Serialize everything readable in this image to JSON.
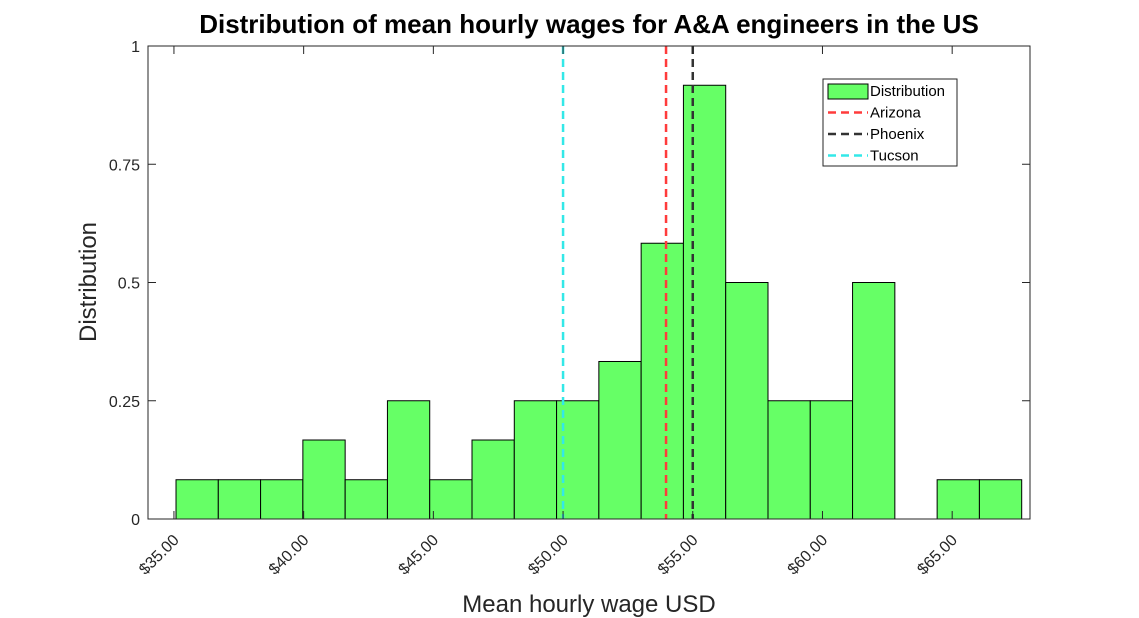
{
  "chart_data": {
    "type": "bar",
    "title": "Distribution of mean hourly wages for A&A engineers in the US",
    "xlabel": "Mean hourly wage USD",
    "ylabel": "Distribution",
    "xlim": [
      34,
      68
    ],
    "ylim": [
      0,
      1
    ],
    "x_ticks": [
      35,
      40,
      45,
      50,
      55,
      60,
      65
    ],
    "x_tick_labels": [
      "$35.00",
      "$40.00",
      "$45.00",
      "$50.00",
      "$55.00",
      "$60.00",
      "$65.00"
    ],
    "y_ticks": [
      0,
      0.25,
      0.5,
      0.75,
      1
    ],
    "y_tick_labels": [
      "0",
      "0.25",
      "0.5",
      "0.75",
      "1"
    ],
    "bin_width": 1.63,
    "bins": [
      {
        "start": 35.08,
        "value": 0.083
      },
      {
        "start": 36.71,
        "value": 0.083
      },
      {
        "start": 38.34,
        "value": 0.083
      },
      {
        "start": 39.97,
        "value": 0.167
      },
      {
        "start": 41.6,
        "value": 0.083
      },
      {
        "start": 43.23,
        "value": 0.25
      },
      {
        "start": 44.86,
        "value": 0.083
      },
      {
        "start": 46.49,
        "value": 0.167
      },
      {
        "start": 48.12,
        "value": 0.25
      },
      {
        "start": 49.75,
        "value": 0.25
      },
      {
        "start": 51.38,
        "value": 0.333
      },
      {
        "start": 53.01,
        "value": 0.583
      },
      {
        "start": 54.64,
        "value": 0.917
      },
      {
        "start": 56.27,
        "value": 0.5
      },
      {
        "start": 57.9,
        "value": 0.25
      },
      {
        "start": 59.53,
        "value": 0.25
      },
      {
        "start": 61.16,
        "value": 0.5
      },
      {
        "start": 64.42,
        "value": 0.083
      },
      {
        "start": 66.05,
        "value": 0.083
      }
    ],
    "reference_lines": [
      {
        "name": "Arizona",
        "x": 53.97,
        "color": "#ff3b3b"
      },
      {
        "name": "Phoenix",
        "x": 55.0,
        "color": "#333333"
      },
      {
        "name": "Tucson",
        "x": 50.0,
        "color": "#33e8e8"
      }
    ],
    "bar_color": "#66ff66",
    "legend": {
      "placement": "top-right",
      "entries": [
        "Distribution",
        "Arizona",
        "Phoenix",
        "Tucson"
      ]
    },
    "grid": false
  }
}
